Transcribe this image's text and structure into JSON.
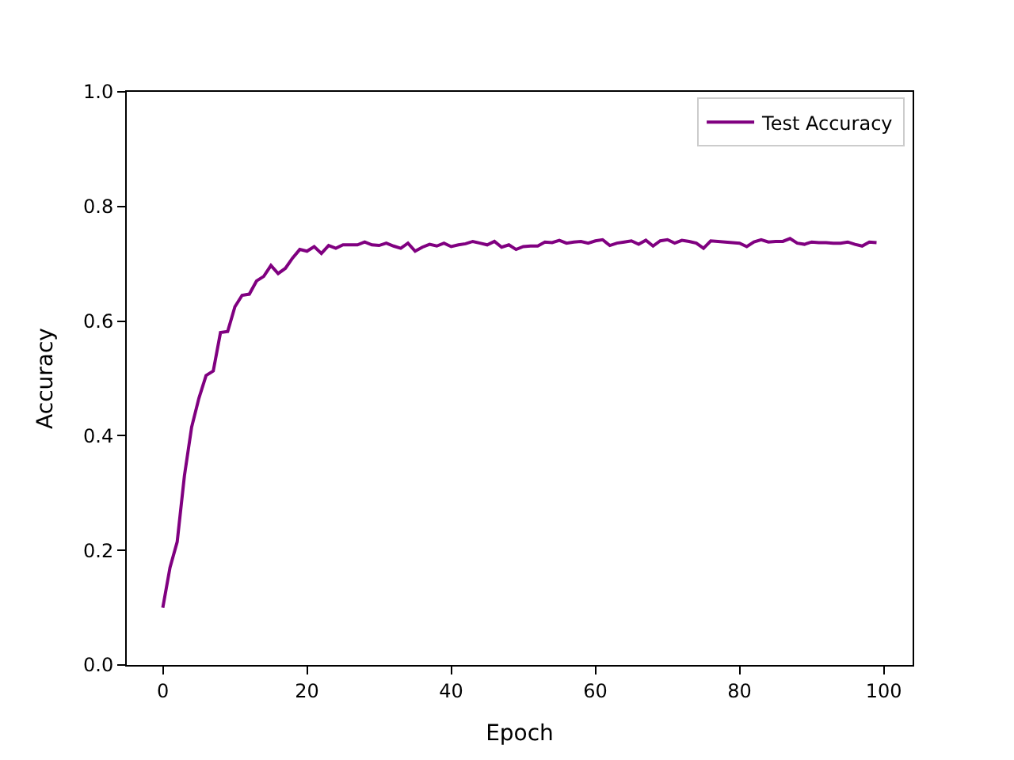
{
  "chart_data": {
    "type": "line",
    "xlabel": "Epoch",
    "ylabel": "Accuracy",
    "x": [
      0,
      1,
      2,
      3,
      4,
      5,
      6,
      7,
      8,
      9,
      10,
      11,
      12,
      13,
      14,
      15,
      16,
      17,
      18,
      19,
      20,
      21,
      22,
      23,
      24,
      25,
      26,
      27,
      28,
      29,
      30,
      31,
      32,
      33,
      34,
      35,
      36,
      37,
      38,
      39,
      40,
      41,
      42,
      43,
      44,
      45,
      46,
      47,
      48,
      49,
      50,
      51,
      52,
      53,
      54,
      55,
      56,
      57,
      58,
      59,
      60,
      61,
      62,
      63,
      64,
      65,
      66,
      67,
      68,
      69,
      70,
      71,
      72,
      73,
      74,
      75,
      76,
      77,
      78,
      79,
      80,
      81,
      82,
      83,
      84,
      85,
      86,
      87,
      88,
      89,
      90,
      91,
      92,
      93,
      94,
      95,
      96,
      97,
      98,
      99
    ],
    "series": [
      {
        "name": "Test Accuracy",
        "color": "#800080",
        "values": [
          0.1,
          0.17,
          0.215,
          0.33,
          0.415,
          0.465,
          0.505,
          0.513,
          0.58,
          0.582,
          0.625,
          0.645,
          0.647,
          0.67,
          0.678,
          0.697,
          0.683,
          0.692,
          0.71,
          0.725,
          0.722,
          0.73,
          0.718,
          0.732,
          0.727,
          0.733,
          0.733,
          0.733,
          0.738,
          0.733,
          0.732,
          0.736,
          0.731,
          0.727,
          0.736,
          0.722,
          0.729,
          0.734,
          0.731,
          0.736,
          0.73,
          0.733,
          0.735,
          0.739,
          0.736,
          0.733,
          0.739,
          0.729,
          0.733,
          0.725,
          0.73,
          0.731,
          0.731,
          0.738,
          0.737,
          0.741,
          0.736,
          0.738,
          0.739,
          0.736,
          0.74,
          0.742,
          0.732,
          0.736,
          0.738,
          0.74,
          0.734,
          0.741,
          0.731,
          0.74,
          0.742,
          0.736,
          0.741,
          0.739,
          0.736,
          0.727,
          0.74,
          0.739,
          0.738,
          0.737,
          0.736,
          0.73,
          0.738,
          0.742,
          0.738,
          0.739,
          0.739,
          0.744,
          0.736,
          0.734,
          0.738,
          0.737,
          0.737,
          0.736,
          0.736,
          0.738,
          0.734,
          0.731,
          0.738,
          0.737
        ]
      }
    ],
    "xlim": [
      -5,
      104
    ],
    "xticks": [
      0,
      20,
      40,
      60,
      80,
      100
    ],
    "ylim": [
      0,
      1
    ],
    "yticks": [
      {
        "value": 0,
        "label": "0.0"
      },
      {
        "value": 0.2,
        "label": "0.2"
      },
      {
        "value": 0.4,
        "label": "0.4"
      },
      {
        "value": 0.6,
        "label": "0.6"
      },
      {
        "value": 0.8,
        "label": "0.8"
      },
      {
        "value": 1,
        "label": "1.0"
      }
    ],
    "legend": "top right",
    "marker": "none",
    "line_style": "solid"
  }
}
